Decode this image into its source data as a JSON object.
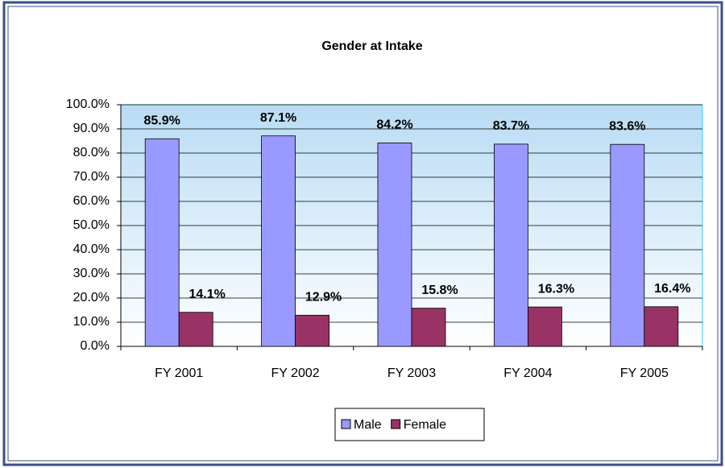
{
  "chart_data": {
    "type": "bar",
    "title": "Gender at Intake",
    "categories": [
      "FY 2001",
      "FY 2002",
      "FY 2003",
      "FY 2004",
      "FY 2005"
    ],
    "series": [
      {
        "name": "Male",
        "color": "#9999ff",
        "values": [
          85.9,
          87.1,
          84.2,
          83.7,
          83.6
        ],
        "value_labels": [
          "85.9%",
          "87.1%",
          "84.2%",
          "83.7%",
          "83.6%"
        ]
      },
      {
        "name": "Female",
        "color": "#993366",
        "values": [
          14.1,
          12.9,
          15.8,
          16.3,
          16.4
        ],
        "value_labels": [
          "14.1%",
          "12.9%",
          "15.8%",
          "16.3%",
          "16.4%"
        ]
      }
    ],
    "ylim": [
      0,
      100
    ],
    "yticks": [
      {
        "value": 0,
        "label": "0.0%"
      },
      {
        "value": 10,
        "label": "10.0%"
      },
      {
        "value": 20,
        "label": "20.0%"
      },
      {
        "value": 30,
        "label": "30.0%"
      },
      {
        "value": 40,
        "label": "40.0%"
      },
      {
        "value": 50,
        "label": "50.0%"
      },
      {
        "value": 60,
        "label": "60.0%"
      },
      {
        "value": 70,
        "label": "70.0%"
      },
      {
        "value": 80,
        "label": "80.0%"
      },
      {
        "value": 90,
        "label": "90.0%"
      },
      {
        "value": 100,
        "label": "100.0%"
      }
    ],
    "grid": true,
    "legend": "bottom"
  }
}
